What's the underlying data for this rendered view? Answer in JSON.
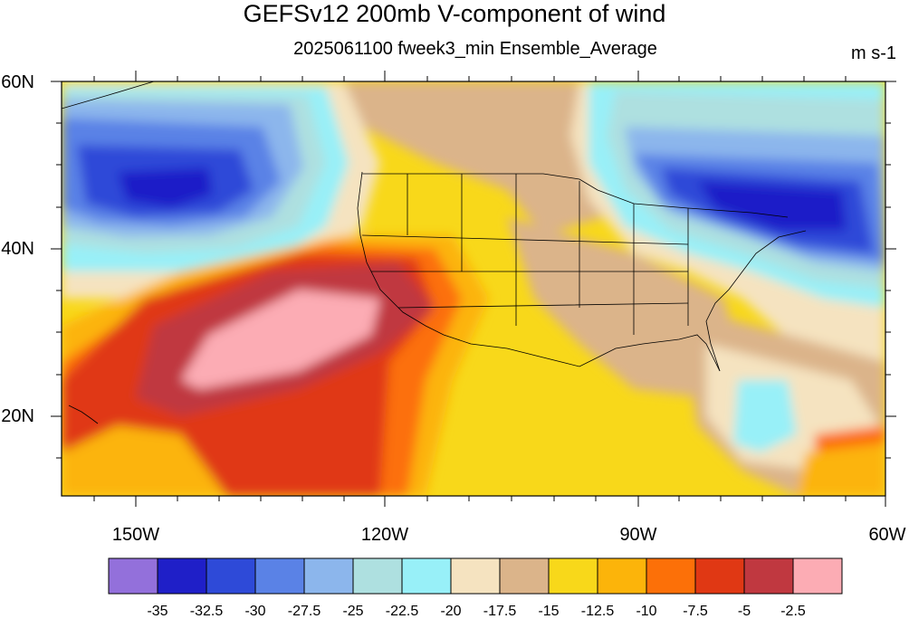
{
  "title": "GEFSv12 200mb V-component of wind",
  "subtitle": "2025061100 fweek3_min Ensemble_Average",
  "units": "m s-1",
  "lat_labels": [
    "60N",
    "40N",
    "20N"
  ],
  "lon_labels": [
    "150W",
    "120W",
    "90W",
    "60W"
  ],
  "colorbar": {
    "colors": [
      "#9370db",
      "#1f1fc8",
      "#2e4ad8",
      "#5a82e6",
      "#8cb6ec",
      "#aee0e0",
      "#98f0f8",
      "#f5e3c0",
      "#dbb48a",
      "#f8d81a",
      "#fcb40a",
      "#fc7008",
      "#e03814",
      "#c03840",
      "#fcacb4"
    ],
    "labels": [
      "-35",
      "-32.5",
      "-30",
      "-27.5",
      "-25",
      "-22.5",
      "-20",
      "-17.5",
      "-15",
      "-12.5",
      "-10",
      "-7.5",
      "-5",
      "-2.5"
    ]
  }
}
